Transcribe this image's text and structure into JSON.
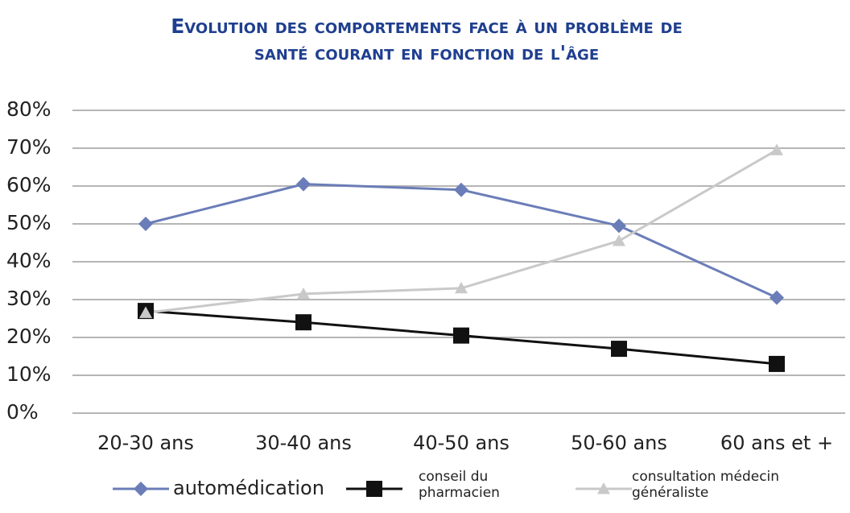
{
  "chart_data": {
    "type": "line",
    "title": "Evolution des comportements face à un problème de santé courant en fonction de l'âge",
    "categories": [
      "20-30 ans",
      "30-40 ans",
      "40-50 ans",
      "50-60 ans",
      "60 ans et +"
    ],
    "series": [
      {
        "name": "automédication",
        "color": "#6b7db8",
        "marker": "diamond",
        "values": [
          50,
          60.5,
          59,
          49.5,
          30.5
        ]
      },
      {
        "name": "conseil du pharmacien",
        "color": "#111111",
        "marker": "square",
        "values": [
          27,
          24,
          20.5,
          17,
          13
        ]
      },
      {
        "name": "consultation médecin généraliste",
        "color": "#c9c9c9",
        "marker": "triangle",
        "values": [
          26.5,
          31.5,
          33,
          45.5,
          69.5
        ]
      }
    ],
    "ylim": [
      0,
      80
    ],
    "yticks": [
      {
        "value": 0,
        "label": "0%"
      },
      {
        "value": 10,
        "label": "10%"
      },
      {
        "value": 20,
        "label": "20%"
      },
      {
        "value": 30,
        "label": "30%"
      },
      {
        "value": 40,
        "label": "40%"
      },
      {
        "value": 50,
        "label": "50%"
      },
      {
        "value": 60,
        "label": "60%"
      },
      {
        "value": 70,
        "label": "70%"
      },
      {
        "value": 80,
        "label": "80%"
      }
    ],
    "grid": true,
    "legend": "bottom"
  }
}
